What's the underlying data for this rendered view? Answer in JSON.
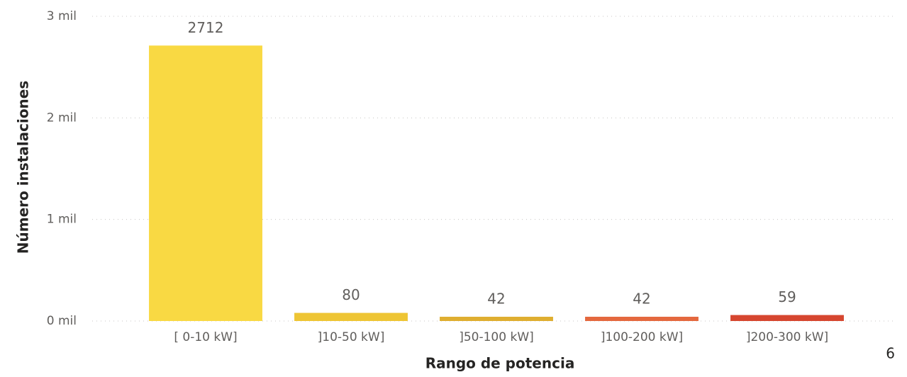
{
  "chart_data": {
    "type": "bar",
    "xlabel": "Rango de potencia",
    "ylabel": "Número instalaciones",
    "categories": [
      "[ 0-10 kW]",
      "]10-50 kW]",
      "]50-100 kW]",
      "]100-200 kW]",
      "]200-300 kW]"
    ],
    "values": [
      2712,
      80,
      42,
      42,
      59
    ],
    "colors": [
      "#f9d943",
      "#eec534",
      "#dfae30",
      "#e4683e",
      "#d6462f"
    ],
    "ylim": [
      0,
      3000
    ],
    "yticks": [
      {
        "value": 0,
        "label": "0 mil"
      },
      {
        "value": 1000,
        "label": "1 mil"
      },
      {
        "value": 2000,
        "label": "2 mil"
      },
      {
        "value": 3000,
        "label": "3 mil"
      }
    ],
    "grid": true
  },
  "page_number": "6"
}
